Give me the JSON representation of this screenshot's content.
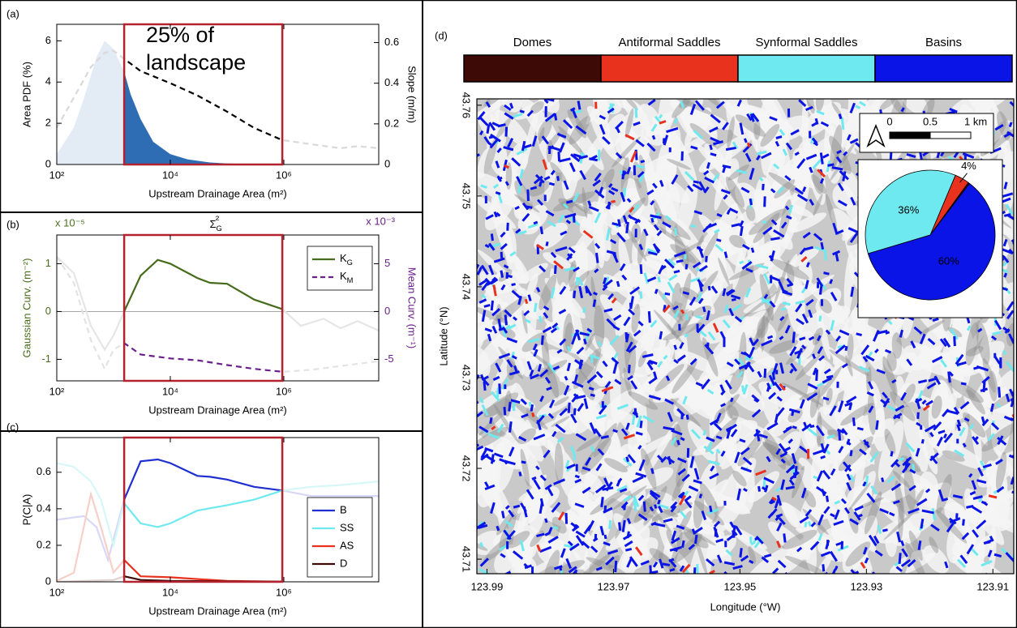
{
  "chart_data": [
    {
      "type": "line",
      "panel": "(a)",
      "xlabel": "Upstream Drainage Area (m²)",
      "ylabel": "Area PDF (%)",
      "y2label": "Slope (m/m)",
      "annotation": "25% of landscape",
      "log_x": true,
      "xlim": [
        100,
        47000000
      ],
      "xticks": [
        {
          "value": 100,
          "label": "10²"
        },
        {
          "value": 10000,
          "label": "10⁴"
        },
        {
          "value": 1000000,
          "label": "10⁶"
        }
      ],
      "ylim": [
        0,
        6.8
      ],
      "yticks": [
        0,
        2,
        4,
        6
      ],
      "y2lim": [
        0,
        0.69
      ],
      "y2ticks": [
        0,
        0.2,
        0.4,
        0.6
      ],
      "highlight": [
        1540,
        940000
      ],
      "highlight_color": "#b3222f",
      "series": [
        {
          "fill": true,
          "color": "#2e6db4",
          "outside_color": "#e3ebf5",
          "x": [
            100,
            200,
            300,
            500,
            700,
            1000,
            1540,
            2000,
            3000,
            5000,
            10000,
            20000,
            50000,
            100000,
            300000,
            1000000,
            10000000,
            47000000
          ],
          "values": [
            0.5,
            1.8,
            3.2,
            5.2,
            6.0,
            5.6,
            4.5,
            3.4,
            2.2,
            1.1,
            0.5,
            0.25,
            0.1,
            0.05,
            0.02,
            0.01,
            0.003,
            0
          ]
        },
        {
          "axis": "y2",
          "dashed": true,
          "color": "#000000",
          "outside_color": "#d9d9d9",
          "x": [
            100,
            200,
            400,
            700,
            1000,
            1540,
            3000,
            10000,
            30000,
            100000,
            300000,
            940000,
            3000000,
            10000000,
            20000000,
            47000000
          ],
          "values": [
            0.18,
            0.33,
            0.48,
            0.55,
            0.56,
            0.52,
            0.46,
            0.4,
            0.34,
            0.26,
            0.18,
            0.12,
            0.1,
            0.08,
            0.09,
            0.08
          ]
        }
      ]
    },
    {
      "type": "line",
      "panel": "(b)",
      "title": "ΣG²",
      "xlabel": "Upstream Drainage Area (m²)",
      "ylabel": "Gaussian Curv. (m⁻²)",
      "y2label": "Mean Curv. (m⁻¹)",
      "yscale_label": "x 10⁻⁵",
      "y2scale_label": "x 10⁻³",
      "ylabel_color": "#4a6e1e",
      "y2label_color": "#6a1f8a",
      "log_x": true,
      "xlim": [
        100,
        47000000
      ],
      "xticks": [
        {
          "value": 100,
          "label": "10²"
        },
        {
          "value": 10000,
          "label": "10⁴"
        },
        {
          "value": 1000000,
          "label": "10⁶"
        }
      ],
      "ylim": [
        -1.45,
        1.6
      ],
      "yticks": [
        -1,
        0,
        1
      ],
      "y2lim": [
        -7.25,
        8
      ],
      "y2ticks": [
        -5,
        0,
        5
      ],
      "zero_line": true,
      "highlight": [
        1540,
        940000
      ],
      "highlight_color": "#b3222f",
      "legend": "upper right",
      "series": [
        {
          "name": "KG",
          "color": "#466b1c",
          "outside_color": "#e6e6e6",
          "x": [
            100,
            200,
            400,
            700,
            1000,
            1540,
            3000,
            6000,
            10000,
            30000,
            50000,
            100000,
            300000,
            940000,
            2000000,
            5000000,
            10000000,
            20000000,
            47000000
          ],
          "values": [
            1.15,
            0.8,
            -0.3,
            -0.8,
            -0.5,
            0,
            0.75,
            1.08,
            1.0,
            0.7,
            0.6,
            0.58,
            0.25,
            0.05,
            -0.3,
            -0.15,
            -0.35,
            -0.2,
            -0.4
          ]
        },
        {
          "name": "KM",
          "axis": "y2",
          "dashed": true,
          "color": "#6a1f8a",
          "outside_color": "#e3e3e3",
          "x": [
            100,
            200,
            400,
            700,
            1000,
            1540,
            3000,
            10000,
            30000,
            100000,
            300000,
            940000,
            3000000,
            10000000,
            47000000
          ],
          "values": [
            5.7,
            3,
            -3,
            -6,
            -4,
            -3.3,
            -4.5,
            -4.9,
            -5.1,
            -5.6,
            -6,
            -6.3,
            -6.1,
            -5.7,
            -5.2
          ]
        }
      ]
    },
    {
      "type": "line",
      "panel": "(c)",
      "xlabel": "Upstream Drainage Area (m²)",
      "ylabel": "P(C|A)",
      "log_x": true,
      "xlim": [
        100,
        47000000
      ],
      "xticks": [
        {
          "value": 100,
          "label": "10²"
        },
        {
          "value": 10000,
          "label": "10⁴"
        },
        {
          "value": 1000000,
          "label": "10⁶"
        }
      ],
      "ylim": [
        0,
        0.79
      ],
      "yticks": [
        0,
        0.2,
        0.4,
        0.6
      ],
      "highlight": [
        1540,
        940000
      ],
      "highlight_color": "#b3222f",
      "legend": "lower right",
      "series": [
        {
          "name": "B",
          "color": "#1f2fd0",
          "outside_color": "#d6d8f5",
          "x": [
            100,
            300,
            500,
            800,
            1540,
            3000,
            6000,
            10000,
            30000,
            50000,
            100000,
            300000,
            940000,
            3000000,
            10000000,
            47000000
          ],
          "values": [
            0.34,
            0.36,
            0.3,
            0.12,
            0.45,
            0.66,
            0.67,
            0.65,
            0.58,
            0.575,
            0.56,
            0.52,
            0.5,
            0.47,
            0.47,
            0.47
          ]
        },
        {
          "name": "SS",
          "color": "#6ee9ef",
          "outside_color": "#d6f7f8",
          "x": [
            100,
            200,
            400,
            600,
            1000,
            1540,
            3000,
            6000,
            10000,
            30000,
            100000,
            300000,
            940000,
            3000000,
            10000000,
            47000000
          ],
          "values": [
            0.65,
            0.63,
            0.55,
            0.45,
            0.2,
            0.43,
            0.32,
            0.3,
            0.32,
            0.39,
            0.42,
            0.45,
            0.5,
            0.52,
            0.53,
            0.55
          ]
        },
        {
          "name": "AS",
          "color": "#e8321e",
          "outside_color": "#f7cfc9",
          "x": [
            100,
            200,
            400,
            600,
            1000,
            1540,
            3000,
            10000,
            30000,
            100000,
            940000
          ],
          "values": [
            0.005,
            0.05,
            0.48,
            0.3,
            0.05,
            0.12,
            0.03,
            0.025,
            0.015,
            0.005,
            0.001
          ]
        },
        {
          "name": "D",
          "color": "#3d0a05",
          "outside_color": "#e0d2d0",
          "x": [
            100,
            1000,
            1540,
            3000,
            10000,
            100000,
            940000
          ],
          "values": [
            0,
            0.01,
            0.03,
            0.01,
            0.005,
            0.002,
            0.001
          ]
        }
      ]
    },
    {
      "type": "map",
      "panel": "(d)",
      "xlabel": "Longitude (°W)",
      "ylabel": "Latitude (°N)",
      "xlim": [
        123.9916,
        123.9067
      ],
      "xticks": [
        123.99,
        123.97,
        123.95,
        123.93,
        123.91
      ],
      "ylim": [
        43.7084,
        43.7607
      ],
      "yticks": [
        43.71,
        43.72,
        43.73,
        43.74,
        43.75,
        43.76
      ],
      "classes": [
        "Domes",
        "Antiformal Saddles",
        "Synformal Saddles",
        "Basins"
      ],
      "colors": [
        "#3d0a05",
        "#e8321e",
        "#6ee9ef",
        "#0a14e6"
      ],
      "scalebar_labels": [
        "0",
        "0.5",
        "1 km"
      ],
      "inset": {
        "type": "pie",
        "values": [
          0.4,
          3.6,
          36,
          60
        ],
        "value_labels": [
          null,
          "4%",
          "36%",
          "60%"
        ]
      }
    }
  ]
}
